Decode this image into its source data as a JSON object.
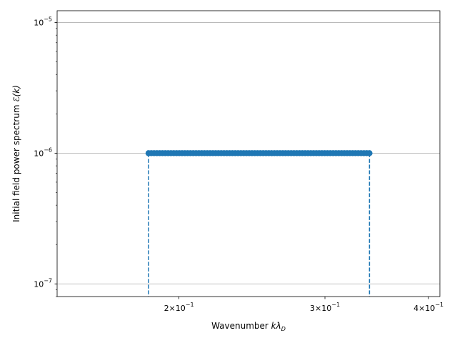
{
  "chart_data": {
    "type": "scatter",
    "x_scale": "log",
    "y_scale": "log",
    "xlabel": {
      "main": "Wavenumber ",
      "math": "kλ",
      "sub": "D"
    },
    "ylabel": {
      "main": "Initial field power spectrum ",
      "math": "ℰ(k)"
    },
    "xlim": [
      0.1426,
      0.4128
    ],
    "ylim": [
      8e-08,
      1.23e-05
    ],
    "grid": {
      "x": false,
      "y": true
    },
    "x_ticks": [
      {
        "value": 0.2,
        "mantissa": "2",
        "base": "10",
        "exp": "−1"
      },
      {
        "value": 0.3,
        "mantissa": "3",
        "base": "10",
        "exp": "−1"
      },
      {
        "value": 0.4,
        "mantissa": "4",
        "base": "10",
        "exp": "−1"
      }
    ],
    "y_ticks": [
      {
        "value": 1e-07,
        "base": "10",
        "exp": "−7"
      },
      {
        "value": 1e-06,
        "base": "10",
        "exp": "−6"
      },
      {
        "value": 1e-05,
        "base": "10",
        "exp": "−5"
      }
    ],
    "series": [
      {
        "type": "scatter",
        "color": "#1f77b4",
        "x_start": 0.1838,
        "x_end": 0.3395,
        "n_points": 80,
        "y": 1e-06
      }
    ],
    "vlines": [
      {
        "x": 0.1838,
        "color": "#1f77b4",
        "style": "dashed"
      },
      {
        "x": 0.3395,
        "color": "#1f77b4",
        "style": "dashed"
      }
    ]
  }
}
